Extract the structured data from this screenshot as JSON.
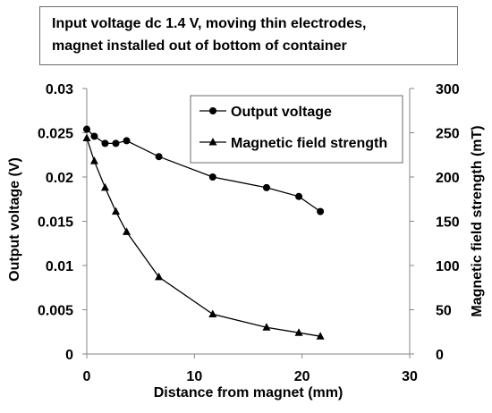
{
  "chart_data": {
    "type": "line",
    "title_line1": "Input voltage dc 1.4 V, moving thin electrodes,",
    "title_line2": "magnet installed out of bottom of container",
    "xlabel": "Distance from magnet   (mm)",
    "ylabel_left": "Output voltage   (V)",
    "ylabel_right": "Magnetic field strength   (mT)",
    "xlim": [
      0,
      30
    ],
    "ylim_left": [
      0,
      0.03
    ],
    "ylim_right": [
      0,
      300
    ],
    "x_ticks": [
      "0",
      "10",
      "20",
      "30"
    ],
    "y_ticks_left": [
      "0",
      "0.005",
      "0.01",
      "0.015",
      "0.02",
      "0.025",
      "0.03"
    ],
    "y_ticks_right": [
      "0",
      "50",
      "100",
      "150",
      "200",
      "250",
      "300"
    ],
    "legend_position": "top-right",
    "series": [
      {
        "name": "Output voltage",
        "axis": "left",
        "marker": "circle",
        "x": [
          0,
          0.7,
          1.7,
          2.7,
          3.7,
          6.7,
          11.7,
          16.7,
          19.7,
          21.7
        ],
        "y": [
          0.0254,
          0.0246,
          0.0238,
          0.0238,
          0.0241,
          0.0223,
          0.02,
          0.0188,
          0.0178,
          0.0161
        ]
      },
      {
        "name": "Magnetic field strength",
        "axis": "right",
        "marker": "triangle",
        "x": [
          0,
          0.7,
          1.7,
          2.7,
          3.7,
          6.7,
          11.7,
          16.7,
          19.7,
          21.7
        ],
        "y": [
          244,
          218,
          188,
          161,
          138,
          87,
          45,
          30,
          24,
          20
        ]
      }
    ]
  }
}
